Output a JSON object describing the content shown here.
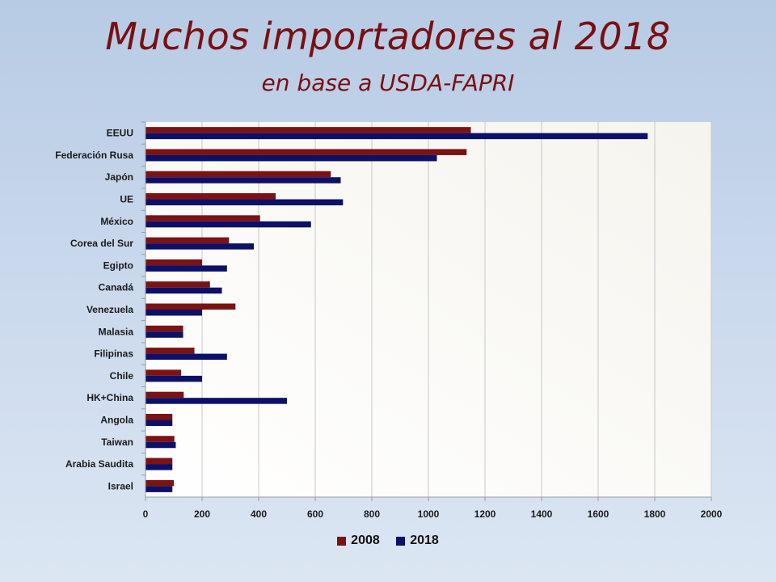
{
  "title": "Muchos importadores al 2018",
  "subtitle": "en base a USDA-FAPRI",
  "colors": {
    "s2008": "#7b1214",
    "s2018": "#0c1068",
    "grid": "#c8c8c8"
  },
  "chart_data": {
    "type": "bar",
    "orientation": "horizontal",
    "categories": [
      "EEUU",
      "Federación Rusa",
      "Japón",
      "UE",
      "México",
      "Corea del Sur",
      "Egipto",
      "Canadá",
      "Venezuela",
      "Malasia",
      "Filipinas",
      "Chile",
      "HK+China",
      "Angola",
      "Taiwan",
      "Arabia Saudita",
      "Israel"
    ],
    "series": [
      {
        "name": "2008",
        "values": [
          1150,
          1135,
          655,
          460,
          405,
          295,
          200,
          228,
          318,
          133,
          173,
          126,
          135,
          95,
          102,
          95,
          100
        ]
      },
      {
        "name": "2018",
        "values": [
          1775,
          1030,
          690,
          698,
          585,
          383,
          288,
          270,
          200,
          133,
          288,
          200,
          500,
          95,
          107,
          95,
          95
        ]
      }
    ],
    "xlim": [
      0,
      2000
    ],
    "xticks": [
      "0",
      "200",
      "400",
      "600",
      "800",
      "1000",
      "1200",
      "1400",
      "1600",
      "1800",
      "2000"
    ],
    "grid": true,
    "legend_position": "bottom"
  }
}
